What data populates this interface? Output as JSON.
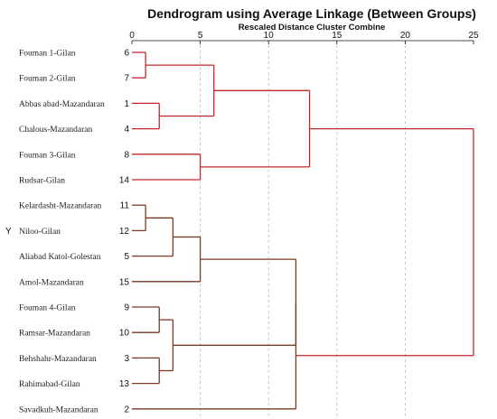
{
  "chart_data": {
    "type": "dendrogram",
    "title": "Dendrogram using Average Linkage (Between Groups)",
    "xlabel": "Rescaled Distance Cluster Combine",
    "xlim": [
      0,
      25
    ],
    "xticks": [
      "0",
      "5",
      "10",
      "15",
      "20",
      "25"
    ],
    "grid": true,
    "selected_marker": "Y",
    "leaves": [
      {
        "label": "Fouman 1-Gilan",
        "num": "6"
      },
      {
        "label": "Fouman 2-Gilan",
        "num": "7"
      },
      {
        "label": "Abbas abad-Mazandaran",
        "num": "1"
      },
      {
        "label": "Chalous-Mazandaran",
        "num": "4"
      },
      {
        "label": "Fouman 3-Gilan",
        "num": "8"
      },
      {
        "label": "Rudsar-Gilan",
        "num": "14"
      },
      {
        "label": "Kelardasht-Mazandaran",
        "num": "11"
      },
      {
        "label": "Niloo-Gilan",
        "num": "12"
      },
      {
        "label": "Aliabad Katol-Golestan",
        "num": "5"
      },
      {
        "label": "Amol-Mazandaran",
        "num": "15"
      },
      {
        "label": "Fouman 4-Gilan",
        "num": "9"
      },
      {
        "label": "Ramsar-Mazandaran",
        "num": "10"
      },
      {
        "label": "Behshahr-Mazandaran",
        "num": "3"
      },
      {
        "label": "Rahimabad-Gilan",
        "num": "13"
      },
      {
        "label": "Savadkuh-Mazandaran",
        "num": "2"
      }
    ],
    "merges": [
      {
        "a": "L0",
        "b": "L1",
        "height": 1,
        "color": "#c0282d"
      },
      {
        "a": "L2",
        "b": "L3",
        "height": 2,
        "color": "#c0282d"
      },
      {
        "a": "M0",
        "b": "M1",
        "height": 6,
        "color": "#c0282d"
      },
      {
        "a": "L4",
        "b": "L5",
        "height": 5,
        "color": "#c0282d"
      },
      {
        "a": "M2",
        "b": "M3",
        "height": 13,
        "color": "#c0282d"
      },
      {
        "a": "L6",
        "b": "L7",
        "height": 1,
        "color": "#7a3a26"
      },
      {
        "a": "M5",
        "b": "L8",
        "height": 3,
        "color": "#7a3a26"
      },
      {
        "a": "L10",
        "b": "L11",
        "height": 2,
        "color": "#7a3a26"
      },
      {
        "a": "L12",
        "b": "L13",
        "height": 2,
        "color": "#7a3a26"
      },
      {
        "a": "M7",
        "b": "M8",
        "height": 3,
        "color": "#7a3a26"
      },
      {
        "a": "M6",
        "b": "L9",
        "height": 5,
        "color": "#7a3a26"
      },
      {
        "a": "M10",
        "b": "M9",
        "height": 12,
        "color": "#7a3a26"
      },
      {
        "a": "M11",
        "b": "L14",
        "height": 12,
        "color": "#7a3a26"
      },
      {
        "a": "M4",
        "b": "M12",
        "height": 25,
        "color": "#c0282d"
      }
    ]
  }
}
